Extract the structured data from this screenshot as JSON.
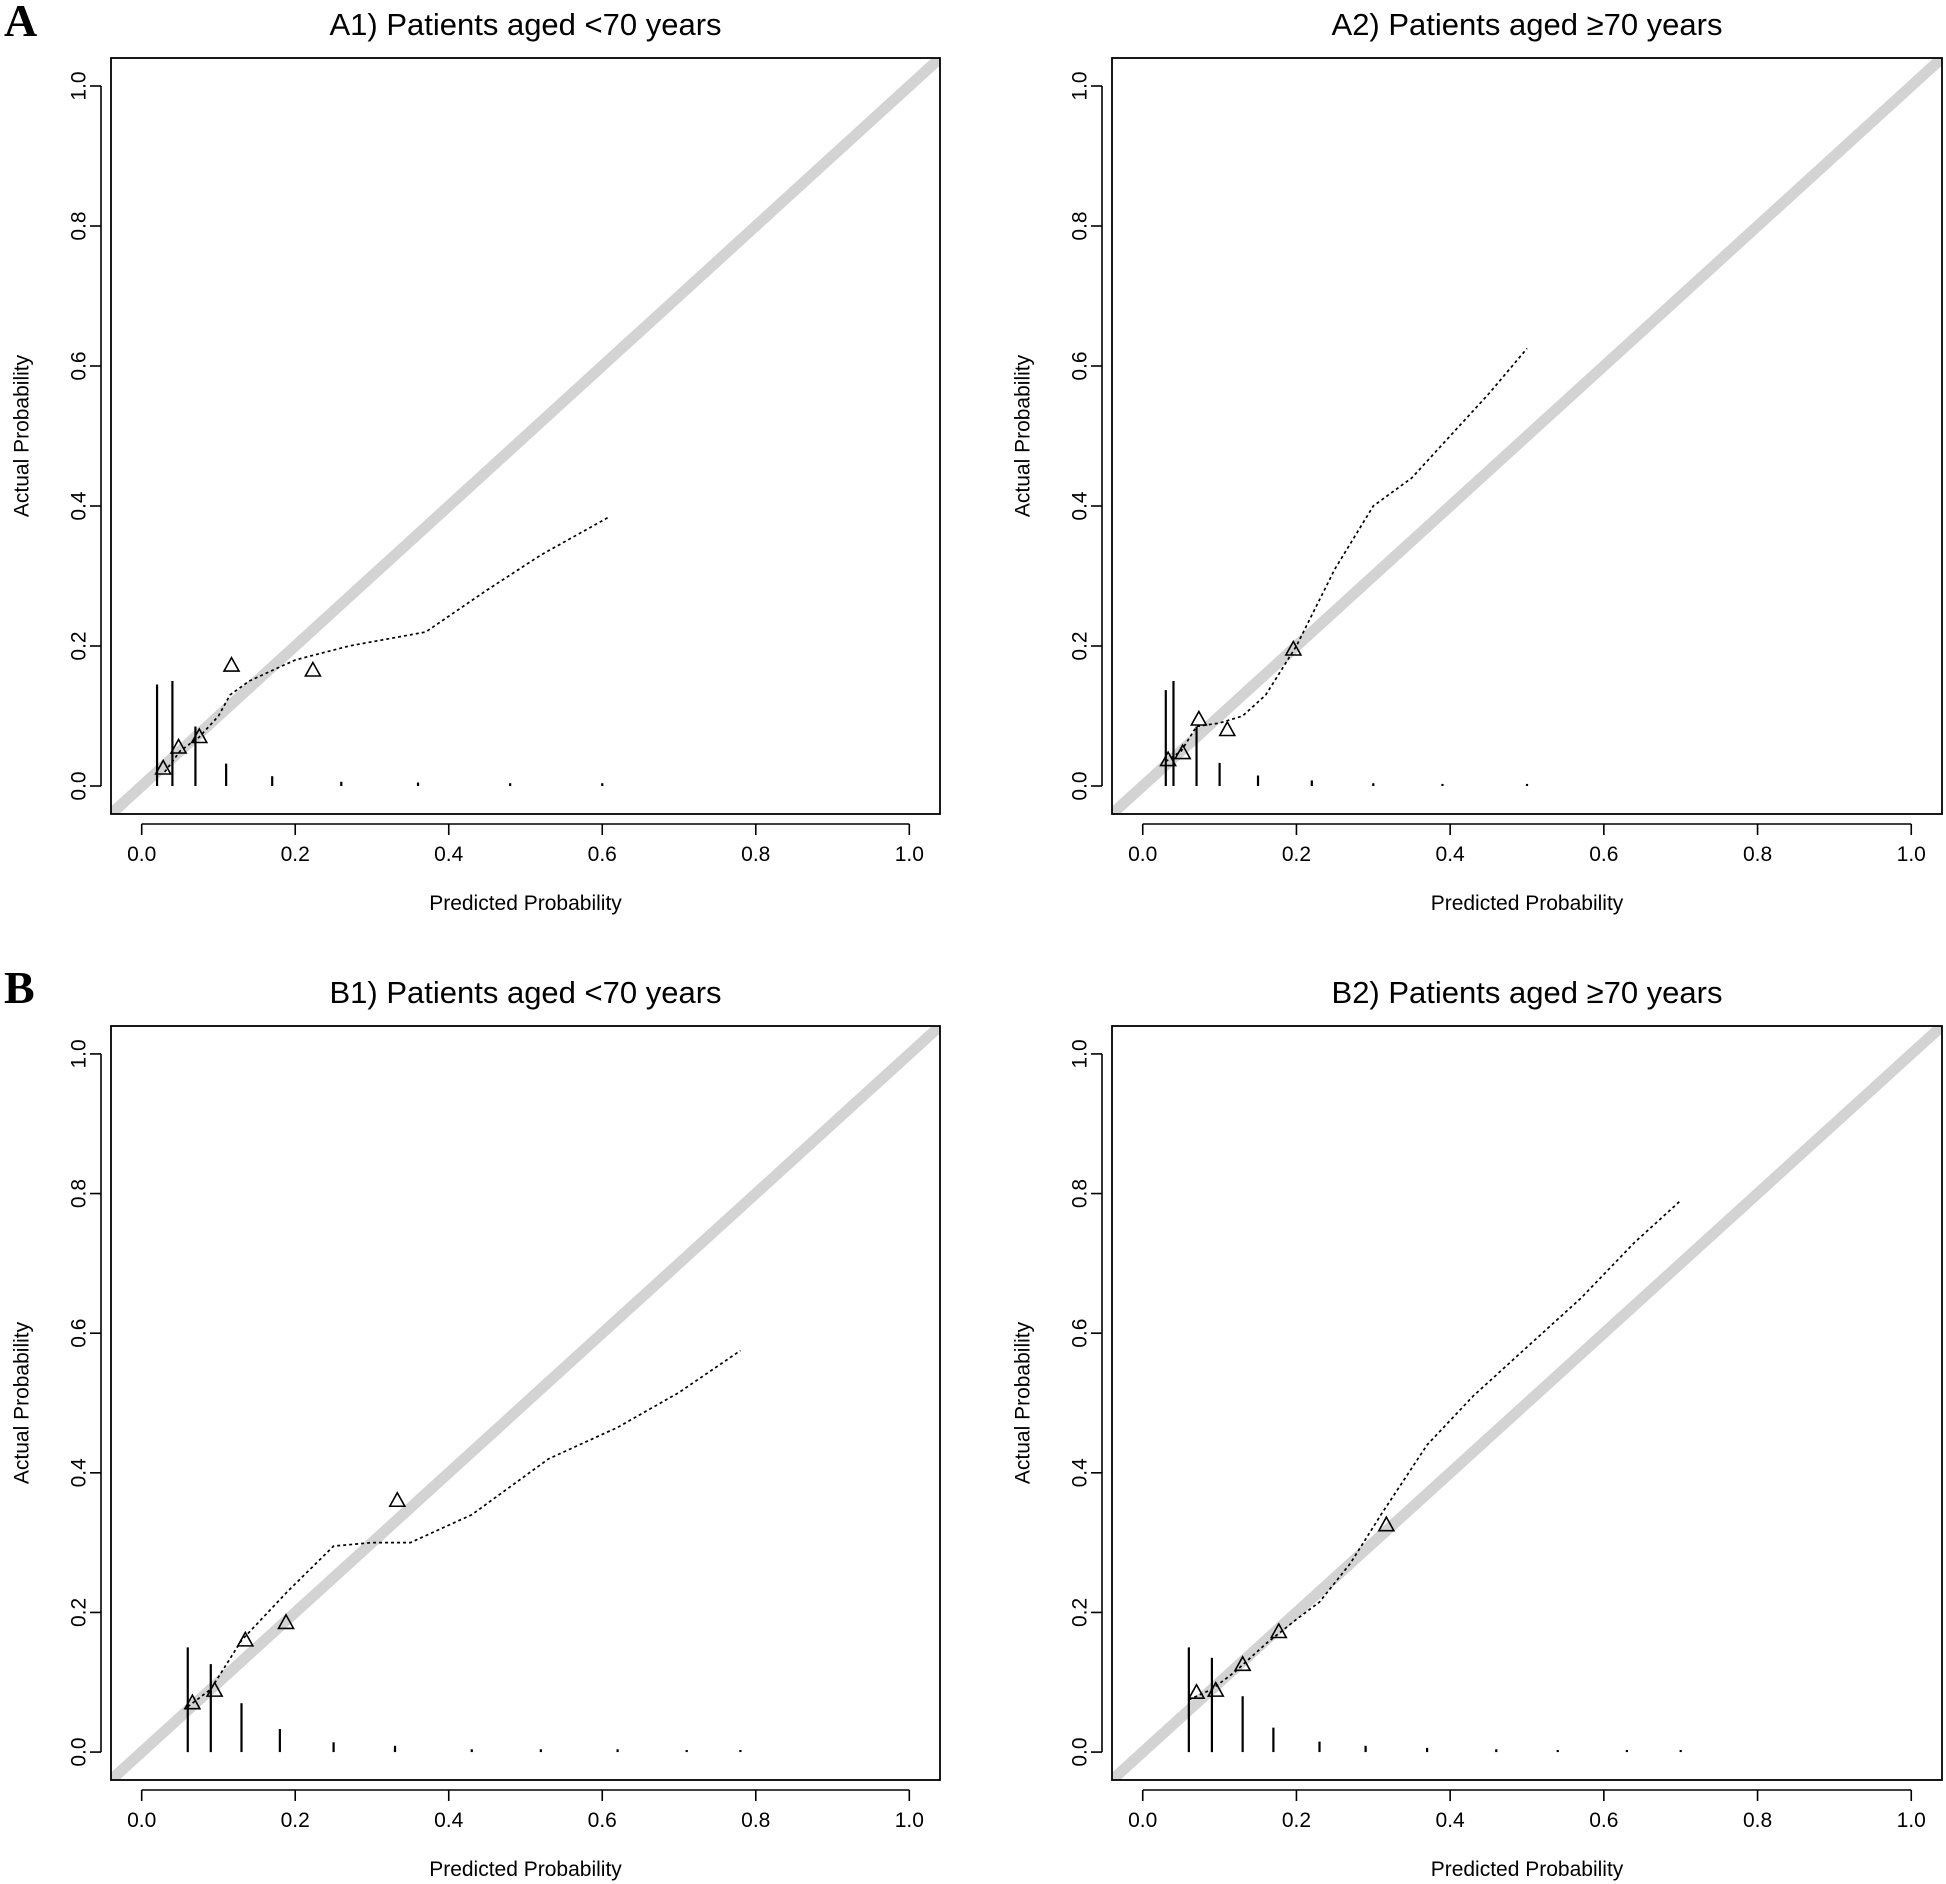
{
  "figure": {
    "row_labels": [
      "A",
      "B"
    ]
  },
  "chart_data": [
    {
      "type": "scatter",
      "title": "A1) Patients aged <70 years",
      "xlabel": "Predicted Probability",
      "ylabel": "Actual Probability",
      "xlim": [
        -0.04,
        1.04
      ],
      "ylim": [
        -0.04,
        1.04
      ],
      "xticks": [
        "0.0",
        "0.2",
        "0.4",
        "0.6",
        "0.8",
        "1.0"
      ],
      "yticks": [
        "0.0",
        "0.2",
        "0.4",
        "0.6",
        "0.8",
        "1.0"
      ],
      "grid": false,
      "reference_line": {
        "style": "ideal",
        "color": "#d3d3d3",
        "x": [
          -0.04,
          1.04
        ],
        "y": [
          -0.04,
          1.04
        ]
      },
      "calibration_curve": {
        "style": "dotted",
        "x": [
          0.03,
          0.05,
          0.075,
          0.1,
          0.115,
          0.14,
          0.2,
          0.27,
          0.37,
          0.45,
          0.52,
          0.61
        ],
        "y": [
          0.02,
          0.05,
          0.07,
          0.1,
          0.13,
          0.15,
          0.18,
          0.2,
          0.22,
          0.28,
          0.33,
          0.385
        ]
      },
      "grouped_observations": {
        "marker": "triangle",
        "x": [
          0.028,
          0.048,
          0.075,
          0.117,
          0.223
        ],
        "y": [
          0.025,
          0.055,
          0.07,
          0.172,
          0.165
        ]
      },
      "rug": {
        "x": [
          0.02,
          0.04,
          0.07,
          0.11,
          0.17,
          0.26,
          0.36,
          0.48,
          0.6
        ],
        "height": [
          0.145,
          0.15,
          0.085,
          0.032,
          0.014,
          0.006,
          0.005,
          0.004,
          0.004
        ]
      }
    },
    {
      "type": "scatter",
      "title": "A2) Patients aged ≥70 years",
      "xlabel": "Predicted Probability",
      "ylabel": "Actual Probability",
      "xlim": [
        -0.04,
        1.04
      ],
      "ylim": [
        -0.04,
        1.04
      ],
      "xticks": [
        "0.0",
        "0.2",
        "0.4",
        "0.6",
        "0.8",
        "1.0"
      ],
      "yticks": [
        "0.0",
        "0.2",
        "0.4",
        "0.6",
        "0.8",
        "1.0"
      ],
      "grid": false,
      "reference_line": {
        "style": "ideal",
        "color": "#d3d3d3",
        "x": [
          -0.04,
          1.04
        ],
        "y": [
          -0.04,
          1.04
        ]
      },
      "calibration_curve": {
        "style": "dotted",
        "x": [
          0.03,
          0.05,
          0.07,
          0.1,
          0.13,
          0.16,
          0.2,
          0.25,
          0.3,
          0.35,
          0.4,
          0.45,
          0.5
        ],
        "y": [
          0.035,
          0.05,
          0.085,
          0.09,
          0.1,
          0.13,
          0.2,
          0.31,
          0.4,
          0.44,
          0.5,
          0.56,
          0.625
        ]
      },
      "grouped_observations": {
        "marker": "triangle",
        "x": [
          0.033,
          0.052,
          0.073,
          0.11,
          0.196
        ],
        "y": [
          0.037,
          0.047,
          0.095,
          0.08,
          0.195
        ]
      },
      "rug": {
        "x": [
          0.03,
          0.04,
          0.07,
          0.1,
          0.15,
          0.22,
          0.3,
          0.39,
          0.5
        ],
        "height": [
          0.137,
          0.15,
          0.085,
          0.033,
          0.015,
          0.008,
          0.004,
          0.003,
          0.003
        ]
      }
    },
    {
      "type": "scatter",
      "title": "B1) Patients aged <70 years",
      "xlabel": "Predicted Probability",
      "ylabel": "Actual Probability",
      "xlim": [
        -0.04,
        1.04
      ],
      "ylim": [
        -0.04,
        1.04
      ],
      "xticks": [
        "0.0",
        "0.2",
        "0.4",
        "0.6",
        "0.8",
        "1.0"
      ],
      "yticks": [
        "0.0",
        "0.2",
        "0.4",
        "0.6",
        "0.8",
        "1.0"
      ],
      "grid": false,
      "reference_line": {
        "style": "ideal",
        "color": "#d3d3d3",
        "x": [
          -0.04,
          1.04
        ],
        "y": [
          -0.04,
          1.04
        ]
      },
      "calibration_curve": {
        "style": "dotted",
        "x": [
          0.06,
          0.09,
          0.13,
          0.19,
          0.25,
          0.3,
          0.35,
          0.43,
          0.53,
          0.62,
          0.7,
          0.78
        ],
        "y": [
          0.065,
          0.09,
          0.16,
          0.23,
          0.295,
          0.3,
          0.3,
          0.34,
          0.42,
          0.465,
          0.515,
          0.575
        ]
      },
      "grouped_observations": {
        "marker": "triangle",
        "x": [
          0.066,
          0.095,
          0.135,
          0.188,
          0.333
        ],
        "y": [
          0.07,
          0.088,
          0.16,
          0.185,
          0.36
        ]
      },
      "rug": {
        "x": [
          0.06,
          0.09,
          0.13,
          0.18,
          0.25,
          0.33,
          0.43,
          0.52,
          0.62,
          0.71,
          0.78
        ],
        "height": [
          0.15,
          0.126,
          0.07,
          0.033,
          0.014,
          0.009,
          0.004,
          0.004,
          0.004,
          0.003,
          0.003
        ]
      }
    },
    {
      "type": "scatter",
      "title": "B2) Patients aged ≥70 years",
      "xlabel": "Predicted Probability",
      "ylabel": "Actual Probability",
      "xlim": [
        -0.04,
        1.04
      ],
      "ylim": [
        -0.04,
        1.04
      ],
      "xticks": [
        "0.0",
        "0.2",
        "0.4",
        "0.6",
        "0.8",
        "1.0"
      ],
      "yticks": [
        "0.0",
        "0.2",
        "0.4",
        "0.6",
        "0.8",
        "1.0"
      ],
      "grid": false,
      "reference_line": {
        "style": "ideal",
        "color": "#d3d3d3",
        "x": [
          -0.04,
          1.04
        ],
        "y": [
          -0.04,
          1.04
        ]
      },
      "calibration_curve": {
        "style": "dotted",
        "x": [
          0.06,
          0.09,
          0.12,
          0.16,
          0.2,
          0.23,
          0.27,
          0.31,
          0.37,
          0.43,
          0.5,
          0.57,
          0.64,
          0.7
        ],
        "y": [
          0.075,
          0.09,
          0.115,
          0.155,
          0.19,
          0.215,
          0.27,
          0.34,
          0.44,
          0.51,
          0.58,
          0.65,
          0.73,
          0.79
        ]
      },
      "grouped_observations": {
        "marker": "triangle",
        "x": [
          0.07,
          0.095,
          0.13,
          0.177,
          0.317
        ],
        "y": [
          0.085,
          0.088,
          0.125,
          0.172,
          0.325
        ]
      },
      "rug": {
        "x": [
          0.06,
          0.09,
          0.13,
          0.17,
          0.23,
          0.29,
          0.37,
          0.46,
          0.54,
          0.63,
          0.7
        ],
        "height": [
          0.15,
          0.135,
          0.08,
          0.035,
          0.015,
          0.009,
          0.006,
          0.004,
          0.003,
          0.003,
          0.003
        ]
      }
    }
  ]
}
